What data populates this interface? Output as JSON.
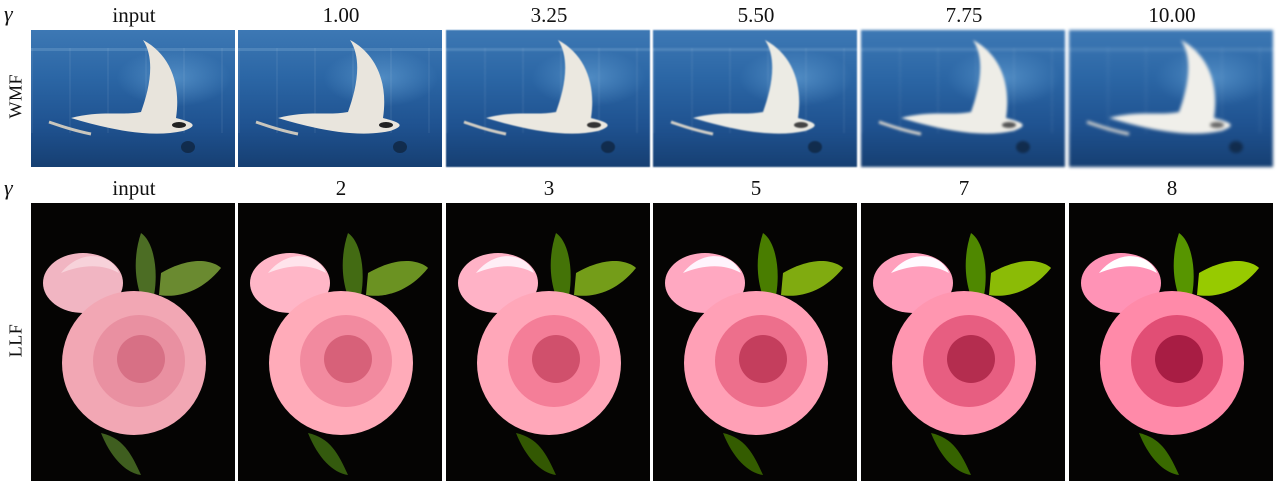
{
  "symbol": "γ",
  "rows": [
    {
      "label": "WMF",
      "headers": [
        "input",
        "1.00",
        "3.25",
        "5.50",
        "7.75",
        "10.00"
      ],
      "scene": "manta-ray-aquarium",
      "colors": {
        "water": "#2b66a5",
        "ray": "#e8e4dc"
      }
    },
    {
      "label": "LLF",
      "headers": [
        "input",
        "2",
        "3",
        "5",
        "7",
        "8"
      ],
      "scene": "pink-rose-on-black",
      "colors": {
        "petal": "#f2a7b4",
        "leaf": "#5e7a2c",
        "background": "#050403"
      }
    }
  ]
}
